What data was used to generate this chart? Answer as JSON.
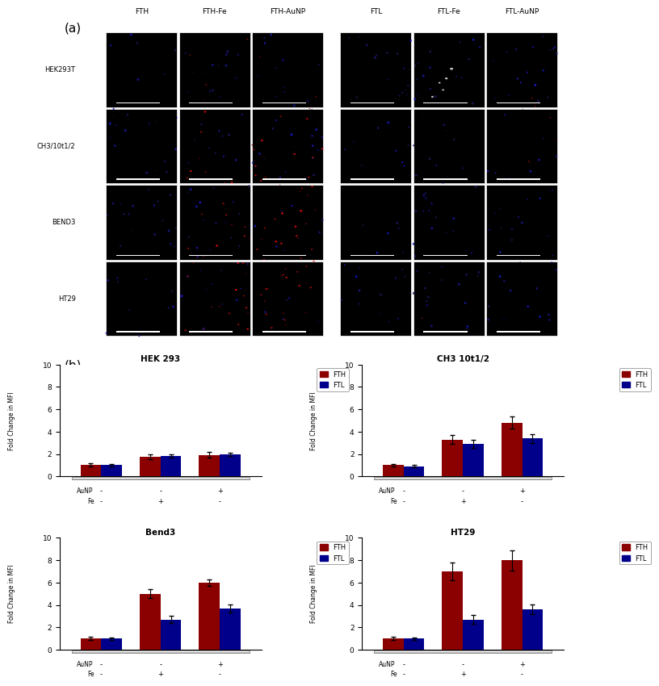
{
  "panel_a_label": "(a)",
  "panel_b_label": "(b)",
  "col_labels_left": [
    "FTH",
    "FTH-Fe",
    "FTH-AuNP"
  ],
  "col_labels_right": [
    "FTL",
    "FTL-Fe",
    "FTL-AuNP"
  ],
  "row_labels": [
    "HEK293T",
    "CH3/10t1/2",
    "BEND3",
    "HT29"
  ],
  "bar_charts": [
    {
      "title": "HEK 293",
      "FTH_values": [
        1.0,
        1.75,
        1.9
      ],
      "FTH_errors": [
        0.15,
        0.2,
        0.25
      ],
      "FTL_values": [
        1.0,
        1.85,
        1.95
      ],
      "FTL_errors": [
        0.1,
        0.15,
        0.15
      ]
    },
    {
      "title": "CH3 10t1/2",
      "FTH_values": [
        1.0,
        3.3,
        4.8
      ],
      "FTH_errors": [
        0.1,
        0.4,
        0.55
      ],
      "FTL_values": [
        0.9,
        2.9,
        3.4
      ],
      "FTL_errors": [
        0.1,
        0.35,
        0.4
      ]
    },
    {
      "title": "Bend3",
      "FTH_values": [
        1.0,
        5.0,
        6.0
      ],
      "FTH_errors": [
        0.15,
        0.4,
        0.3
      ],
      "FTL_values": [
        1.0,
        2.7,
        3.7
      ],
      "FTL_errors": [
        0.1,
        0.35,
        0.35
      ]
    },
    {
      "title": "HT29",
      "FTH_values": [
        1.0,
        7.0,
        8.0
      ],
      "FTH_errors": [
        0.15,
        0.8,
        0.9
      ],
      "FTL_values": [
        1.0,
        2.7,
        3.6
      ],
      "FTL_errors": [
        0.1,
        0.4,
        0.45
      ]
    }
  ],
  "bar_color_FTH": "#8B0000",
  "bar_color_FTL": "#00008B",
  "ylim": [
    0,
    10
  ],
  "yticks": [
    0,
    2,
    4,
    6,
    8,
    10
  ],
  "ylabel": "Fold Change in MFI",
  "aunp_labels": [
    "-",
    "-",
    "+"
  ],
  "fe_labels": [
    "-",
    "+",
    "-"
  ],
  "legend_FTH": "FTH",
  "legend_FTL": "FTL"
}
